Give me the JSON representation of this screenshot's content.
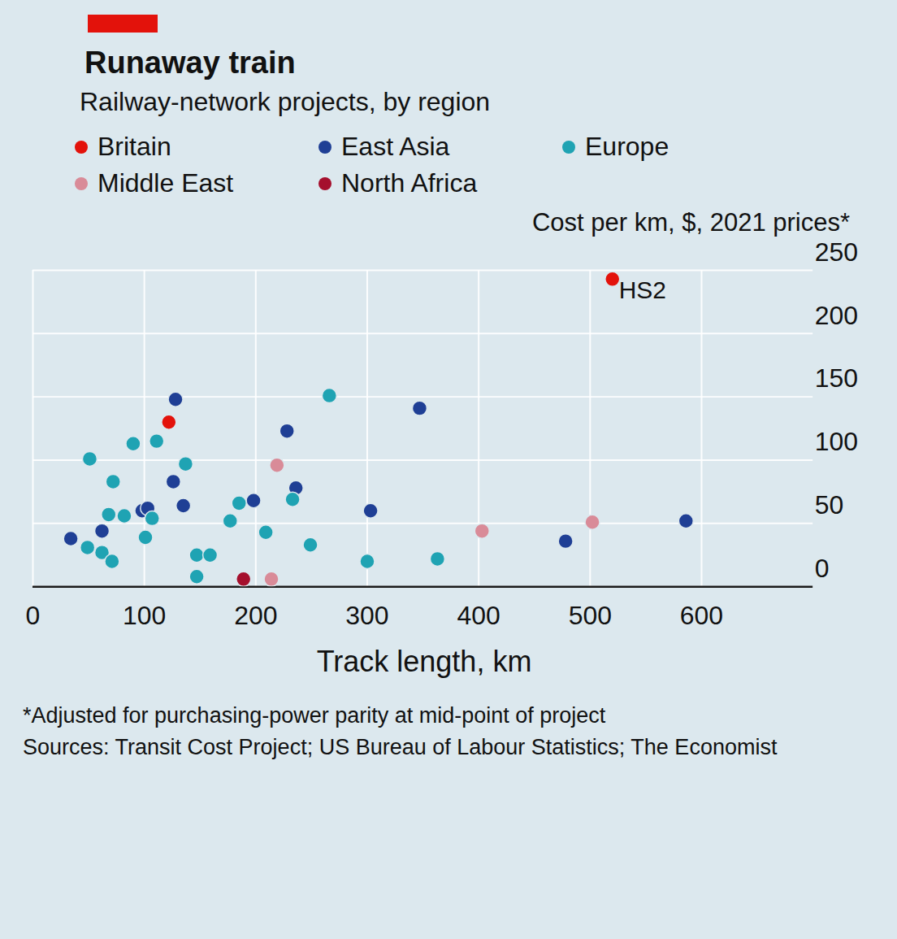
{
  "chart_data": {
    "type": "scatter",
    "title": "Runaway train",
    "subtitle": "Railway-network projects, by region",
    "y_label": "Cost per km, $, 2021 prices*",
    "x_label": "Track length, km",
    "footnote": "*Adjusted for purchasing-power parity at mid-point of project",
    "source": "Sources: Transit Cost Project; US Bureau of Labour Statistics; The Economist",
    "xlim": [
      0,
      700
    ],
    "xticks": [
      0,
      100,
      200,
      300,
      400,
      500,
      600
    ],
    "ylim": [
      0,
      250
    ],
    "yticks": [
      0,
      50,
      100,
      150,
      200,
      250
    ],
    "grid": true,
    "legend": "top",
    "series": [
      {
        "name": "Britain",
        "color": "#e3120b",
        "x": [
          122,
          520
        ],
        "values": [
          130,
          243
        ],
        "labels": [
          null,
          "HS2"
        ]
      },
      {
        "name": "East Asia",
        "color": "#1f3f95",
        "x": [
          128,
          228,
          347,
          126,
          135,
          236,
          198,
          303,
          98,
          103,
          62,
          34,
          478,
          586
        ],
        "values": [
          148,
          123,
          141,
          83,
          64,
          78,
          68,
          60,
          60,
          62,
          44,
          38,
          36,
          52
        ]
      },
      {
        "name": "Europe",
        "color": "#1fa3b3",
        "x": [
          266,
          90,
          111,
          51,
          137,
          72,
          68,
          107,
          101,
          49,
          62,
          71,
          82,
          185,
          177,
          233,
          209,
          249,
          147,
          159,
          147,
          300,
          363
        ],
        "values": [
          151,
          113,
          115,
          101,
          97,
          83,
          57,
          54,
          39,
          31,
          27,
          20,
          56,
          66,
          52,
          69,
          43,
          33,
          25,
          25,
          8,
          20,
          22
        ]
      },
      {
        "name": "Middle East",
        "color": "#d98b98",
        "x": [
          219,
          403,
          502,
          214
        ],
        "values": [
          96,
          44,
          51,
          6
        ]
      },
      {
        "name": "North Africa",
        "color": "#a50f2d",
        "x": [
          189
        ],
        "values": [
          6
        ]
      }
    ]
  }
}
